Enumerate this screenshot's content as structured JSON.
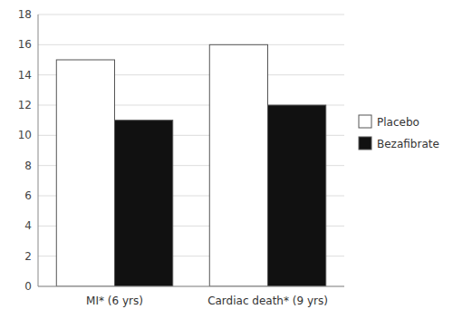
{
  "chart_data": {
    "type": "bar",
    "categories": [
      "MI* (6 yrs)",
      "Cardiac death* (9 yrs)"
    ],
    "series": [
      {
        "name": "Placebo",
        "color": "#ffffff",
        "values": [
          15,
          16
        ]
      },
      {
        "name": "Bezafibrate",
        "color": "#111111",
        "values": [
          11,
          12
        ]
      }
    ],
    "ylim": [
      0,
      18
    ],
    "yticks": [
      0,
      2,
      4,
      6,
      8,
      10,
      12,
      14,
      16,
      18
    ],
    "grid": true,
    "legend": "right"
  }
}
